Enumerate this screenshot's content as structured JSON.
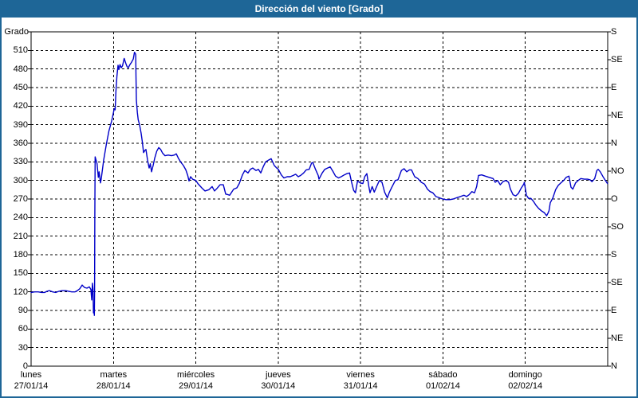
{
  "window": {
    "title": "Dirección del viento [Grado]"
  },
  "colors": {
    "titlebar_bg": "#1e6697",
    "frame": "#1e6697",
    "title_text": "#ffffff",
    "background": "#ffffff",
    "plot_border": "#000000",
    "grid": "#000000",
    "line": "#0000c8",
    "text": "#000000"
  },
  "chart_data": {
    "type": "line",
    "title": "Dirección del viento [Grado]",
    "grid": "dashed",
    "legend": "none",
    "y_axis": {
      "title": "Grado",
      "ylim": [
        0,
        540
      ],
      "tick_step": 30,
      "ticks": [
        0,
        30,
        60,
        90,
        120,
        150,
        180,
        210,
        240,
        270,
        300,
        330,
        360,
        390,
        420,
        450,
        480,
        510
      ]
    },
    "y2_axis": {
      "tick_step_deg": 45,
      "ticks": [
        {
          "label": "S",
          "deg": 540
        },
        {
          "label": "SE",
          "deg": 495
        },
        {
          "label": "E",
          "deg": 450
        },
        {
          "label": "NE",
          "deg": 405
        },
        {
          "label": "N",
          "deg": 360
        },
        {
          "label": "NO",
          "deg": 315
        },
        {
          "label": "O",
          "deg": 270
        },
        {
          "label": "SO",
          "deg": 225
        },
        {
          "label": "S",
          "deg": 180
        },
        {
          "label": "SE",
          "deg": 135
        },
        {
          "label": "E",
          "deg": 90
        },
        {
          "label": "NE",
          "deg": 45
        },
        {
          "label": "N",
          "deg": 0
        }
      ]
    },
    "x_axis": {
      "xlim_days": [
        0,
        7
      ],
      "days": [
        {
          "name": "lunes",
          "date": "27/01/14"
        },
        {
          "name": "martes",
          "date": "28/01/14"
        },
        {
          "name": "miércoles",
          "date": "29/01/14"
        },
        {
          "name": "jueves",
          "date": "30/01/14"
        },
        {
          "name": "viernes",
          "date": "31/01/14"
        },
        {
          "name": "sábado",
          "date": "01/02/14"
        },
        {
          "name": "domingo",
          "date": "02/02/14"
        }
      ]
    },
    "series": [
      {
        "name": "Dirección del viento",
        "unit": "Grado",
        "color": "#0000c8",
        "points": [
          [
            0.0,
            119
          ],
          [
            0.044,
            120
          ],
          [
            0.087,
            120
          ],
          [
            0.126,
            119
          ],
          [
            0.165,
            119
          ],
          [
            0.194,
            121
          ],
          [
            0.223,
            122
          ],
          [
            0.261,
            120
          ],
          [
            0.3,
            119
          ],
          [
            0.339,
            121
          ],
          [
            0.378,
            122
          ],
          [
            0.417,
            122
          ],
          [
            0.455,
            121
          ],
          [
            0.494,
            120
          ],
          [
            0.532,
            120
          ],
          [
            0.562,
            122
          ],
          [
            0.591,
            125
          ],
          [
            0.62,
            131
          ],
          [
            0.649,
            127
          ],
          [
            0.678,
            126
          ],
          [
            0.707,
            128
          ],
          [
            0.726,
            124
          ],
          [
            0.736,
            107
          ],
          [
            0.745,
            134
          ],
          [
            0.751,
            125
          ],
          [
            0.757,
            86
          ],
          [
            0.762,
            95
          ],
          [
            0.768,
            82
          ],
          [
            0.771,
            120
          ],
          [
            0.774,
            240
          ],
          [
            0.777,
            338
          ],
          [
            0.801,
            327
          ],
          [
            0.816,
            305
          ],
          [
            0.826,
            314
          ],
          [
            0.842,
            296
          ],
          [
            0.852,
            303
          ],
          [
            0.881,
            333
          ],
          [
            0.913,
            358
          ],
          [
            0.945,
            380
          ],
          [
            0.978,
            396
          ],
          [
            1.0,
            410
          ],
          [
            1.01,
            416
          ],
          [
            1.02,
            414
          ],
          [
            1.03,
            445
          ],
          [
            1.042,
            468
          ],
          [
            1.055,
            486
          ],
          [
            1.065,
            479
          ],
          [
            1.08,
            487
          ],
          [
            1.095,
            482
          ],
          [
            1.11,
            485
          ],
          [
            1.13,
            497
          ],
          [
            1.15,
            489
          ],
          [
            1.165,
            484
          ],
          [
            1.18,
            482
          ],
          [
            1.2,
            487
          ],
          [
            1.22,
            491
          ],
          [
            1.24,
            496
          ],
          [
            1.255,
            507
          ],
          [
            1.265,
            505
          ],
          [
            1.27,
            503
          ],
          [
            1.273,
            470
          ],
          [
            1.278,
            430
          ],
          [
            1.29,
            410
          ],
          [
            1.3,
            398
          ],
          [
            1.317,
            390
          ],
          [
            1.336,
            376
          ],
          [
            1.35,
            363
          ],
          [
            1.365,
            345
          ],
          [
            1.38,
            348
          ],
          [
            1.394,
            350
          ],
          [
            1.414,
            333
          ],
          [
            1.433,
            320
          ],
          [
            1.447,
            327
          ],
          [
            1.462,
            314
          ],
          [
            1.481,
            324
          ],
          [
            1.501,
            336
          ],
          [
            1.525,
            347
          ],
          [
            1.549,
            353
          ],
          [
            1.573,
            350
          ],
          [
            1.597,
            344
          ],
          [
            1.626,
            340
          ],
          [
            1.665,
            341
          ],
          [
            1.704,
            340
          ],
          [
            1.738,
            341
          ],
          [
            1.762,
            343
          ],
          [
            1.791,
            335
          ],
          [
            1.82,
            329
          ],
          [
            1.849,
            324
          ],
          [
            1.878,
            317
          ],
          [
            1.902,
            308
          ],
          [
            1.917,
            299
          ],
          [
            1.936,
            306
          ],
          [
            1.961,
            302
          ],
          [
            2.0,
            300
          ],
          [
            2.024,
            295
          ],
          [
            2.072,
            288
          ],
          [
            2.111,
            283
          ],
          [
            2.159,
            285
          ],
          [
            2.198,
            290
          ],
          [
            2.227,
            283
          ],
          [
            2.256,
            287
          ],
          [
            2.295,
            293
          ],
          [
            2.333,
            293
          ],
          [
            2.362,
            278
          ],
          [
            2.391,
            277
          ],
          [
            2.411,
            276
          ],
          [
            2.459,
            286
          ],
          [
            2.498,
            288
          ],
          [
            2.527,
            295
          ],
          [
            2.566,
            309
          ],
          [
            2.595,
            316
          ],
          [
            2.633,
            312
          ],
          [
            2.662,
            318
          ],
          [
            2.691,
            320
          ],
          [
            2.73,
            316
          ],
          [
            2.759,
            318
          ],
          [
            2.788,
            312
          ],
          [
            2.817,
            322
          ],
          [
            2.847,
            330
          ],
          [
            2.885,
            333
          ],
          [
            2.914,
            335
          ],
          [
            2.953,
            324
          ],
          [
            2.982,
            320
          ],
          [
            3.001,
            318
          ],
          [
            3.037,
            309
          ],
          [
            3.069,
            304
          ],
          [
            3.108,
            306
          ],
          [
            3.146,
            306
          ],
          [
            3.182,
            308
          ],
          [
            3.211,
            310
          ],
          [
            3.243,
            306
          ],
          [
            3.272,
            308
          ],
          [
            3.308,
            312
          ],
          [
            3.34,
            317
          ],
          [
            3.376,
            318
          ],
          [
            3.405,
            328
          ],
          [
            3.42,
            329
          ],
          [
            3.453,
            318
          ],
          [
            3.485,
            308
          ],
          [
            3.495,
            302
          ],
          [
            3.534,
            312
          ],
          [
            3.566,
            318
          ],
          [
            3.599,
            320
          ],
          [
            3.631,
            322
          ],
          [
            3.663,
            315
          ],
          [
            3.696,
            307
          ],
          [
            3.731,
            304
          ],
          [
            3.764,
            306
          ],
          [
            3.802,
            309
          ],
          [
            3.834,
            311
          ],
          [
            3.866,
            312
          ],
          [
            3.889,
            298
          ],
          [
            3.915,
            284
          ],
          [
            3.938,
            280
          ],
          [
            3.963,
            299
          ],
          [
            3.996,
            296
          ],
          [
            4.028,
            295
          ],
          [
            4.05,
            306
          ],
          [
            4.076,
            311
          ],
          [
            4.099,
            291
          ],
          [
            4.115,
            280
          ],
          [
            4.141,
            290
          ],
          [
            4.166,
            281
          ],
          [
            4.195,
            290
          ],
          [
            4.228,
            300
          ],
          [
            4.26,
            297
          ],
          [
            4.292,
            281
          ],
          [
            4.325,
            272
          ],
          [
            4.35,
            281
          ],
          [
            4.383,
            290
          ],
          [
            4.422,
            300
          ],
          [
            4.454,
            301
          ],
          [
            4.495,
            316
          ],
          [
            4.528,
            319
          ],
          [
            4.56,
            314
          ],
          [
            4.592,
            317
          ],
          [
            4.618,
            317
          ],
          [
            4.657,
            306
          ],
          [
            4.696,
            303
          ],
          [
            4.737,
            297
          ],
          [
            4.776,
            294
          ],
          [
            4.812,
            286
          ],
          [
            4.844,
            282
          ],
          [
            4.877,
            280
          ],
          [
            4.915,
            274
          ],
          [
            4.954,
            272
          ],
          [
            4.996,
            270
          ],
          [
            5.038,
            269
          ],
          [
            5.083,
            269
          ],
          [
            5.125,
            270
          ],
          [
            5.167,
            272
          ],
          [
            5.212,
            274
          ],
          [
            5.254,
            276
          ],
          [
            5.286,
            274
          ],
          [
            5.318,
            277
          ],
          [
            5.351,
            282
          ],
          [
            5.383,
            280
          ],
          [
            5.409,
            290
          ],
          [
            5.432,
            308
          ],
          [
            5.47,
            309
          ],
          [
            5.512,
            307
          ],
          [
            5.56,
            305
          ],
          [
            5.609,
            303
          ],
          [
            5.635,
            297
          ],
          [
            5.664,
            300
          ],
          [
            5.696,
            293
          ],
          [
            5.729,
            298
          ],
          [
            5.764,
            300
          ],
          [
            5.797,
            297
          ],
          [
            5.819,
            286
          ],
          [
            5.851,
            277
          ],
          [
            5.884,
            275
          ],
          [
            5.916,
            279
          ],
          [
            5.948,
            287
          ],
          [
            5.981,
            294
          ],
          [
            5.987,
            297
          ],
          [
            6.013,
            276
          ],
          [
            6.039,
            271
          ],
          [
            6.068,
            271
          ],
          [
            6.1,
            266
          ],
          [
            6.129,
            260
          ],
          [
            6.161,
            255
          ],
          [
            6.194,
            251
          ],
          [
            6.229,
            248
          ],
          [
            6.258,
            243
          ],
          [
            6.271,
            246
          ],
          [
            6.287,
            251
          ],
          [
            6.303,
            264
          ],
          [
            6.335,
            272
          ],
          [
            6.368,
            285
          ],
          [
            6.4,
            292
          ],
          [
            6.432,
            296
          ],
          [
            6.465,
            300
          ],
          [
            6.497,
            305
          ],
          [
            6.529,
            307
          ],
          [
            6.555,
            289
          ],
          [
            6.577,
            286
          ],
          [
            6.61,
            296
          ],
          [
            6.642,
            300
          ],
          [
            6.674,
            303
          ],
          [
            6.716,
            302
          ],
          [
            6.755,
            302
          ],
          [
            6.787,
            301
          ],
          [
            6.809,
            298
          ],
          [
            6.842,
            303
          ],
          [
            6.868,
            316
          ],
          [
            6.884,
            318
          ],
          [
            6.91,
            314
          ],
          [
            6.948,
            305
          ],
          [
            6.997,
            295
          ]
        ]
      }
    ]
  }
}
